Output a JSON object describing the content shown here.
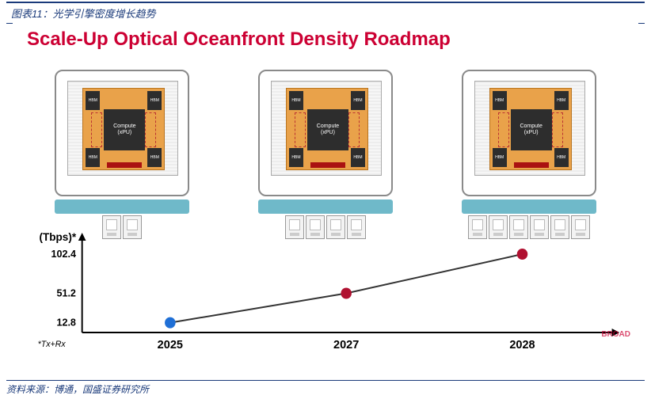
{
  "header": {
    "caption": "图表11：光学引擎密度增长趋势"
  },
  "footer": {
    "source": "资料来源：博通，国盛证券研究所"
  },
  "slide": {
    "title": "Scale-Up Optical Oceanfront Density Roadmap",
    "brand": "BROAD",
    "module": {
      "compute_line1": "Compute",
      "compute_line2": "(xPU)",
      "hbm_label": "HBM"
    },
    "modules": [
      {
        "year": "2025",
        "connector_count": 2
      },
      {
        "year": "2027",
        "connector_count": 4
      },
      {
        "year": "2028",
        "connector_count": 6
      }
    ]
  },
  "chart": {
    "type": "line-scatter",
    "y_unit": "(Tbps)*",
    "footnote": "*Tx+Rx",
    "y_ticks": [
      12.8,
      51.2,
      102.4
    ],
    "ylim": [
      0,
      120
    ],
    "x_categories": [
      "2025",
      "2027",
      "2028"
    ],
    "points": [
      {
        "x": "2025",
        "y": 12.8,
        "color": "#1f6fd6"
      },
      {
        "x": "2027",
        "y": 51.2,
        "color": "#b01030"
      },
      {
        "x": "2028",
        "y": 102.4,
        "color": "#b01030"
      }
    ],
    "line_color": "#333333",
    "line_width": 2,
    "marker_radius": 7,
    "axis_color": "#000000",
    "background": "#ffffff"
  }
}
